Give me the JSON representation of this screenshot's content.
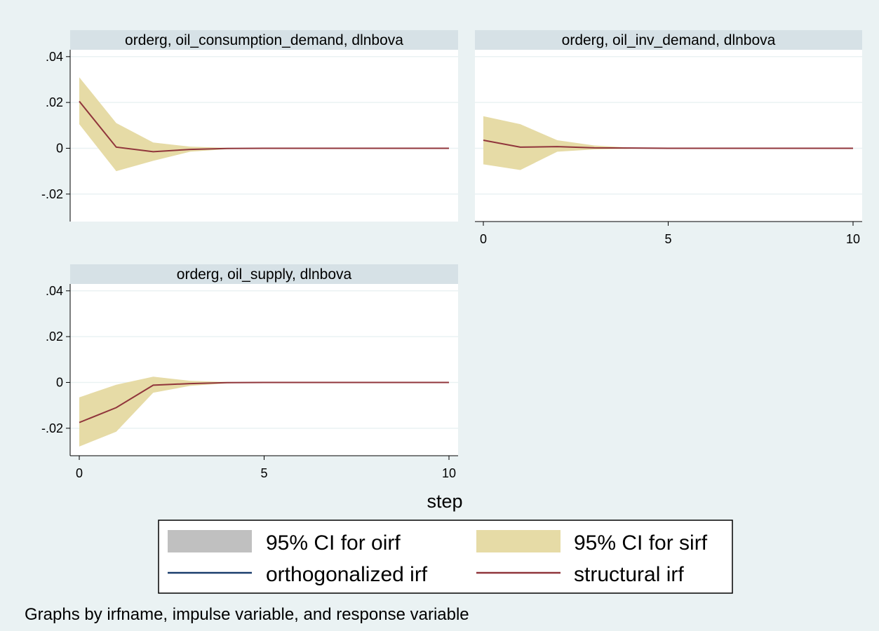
{
  "chart_data": {
    "type": "line",
    "note": "Graphs by irfname, impulse variable, and response variable",
    "xlabel": "step",
    "x": [
      0,
      1,
      2,
      3,
      4,
      5,
      6,
      7,
      8,
      9,
      10
    ],
    "xlim": [
      0,
      10
    ],
    "xticks": [
      "0",
      "5",
      "10"
    ],
    "ylim": [
      -0.032,
      0.043
    ],
    "yticks": [
      ".04",
      ".02",
      "0",
      "-.02"
    ],
    "grid": true,
    "legend": {
      "placement": "bottom",
      "items": [
        {
          "label": "95% CI for oirf",
          "kind": "area",
          "color": "#c0c0c0"
        },
        {
          "label": "95% CI for sirf",
          "kind": "area",
          "color": "#e6dba6"
        },
        {
          "label": "orthogonalized irf",
          "kind": "line",
          "color": "#1a3d6d"
        },
        {
          "label": "structural irf",
          "kind": "line",
          "color": "#90353b"
        }
      ]
    },
    "colors": {
      "ci_sirf": "#e6dba6",
      "sirf_line": "#90353b",
      "strip": "#d6e1e6",
      "grid": "#eaf2f3"
    },
    "panels": [
      {
        "title": "orderg, oil_consumption_demand, dlnbova",
        "sirf": [
          0.0205,
          0.0005,
          -0.0015,
          -0.0005,
          -0.0001,
          0,
          0,
          0,
          0,
          0,
          0
        ],
        "lower": [
          0.0105,
          -0.01,
          -0.0055,
          -0.0015,
          -0.0004,
          0,
          0,
          0,
          0,
          0,
          0
        ],
        "upper": [
          0.031,
          0.011,
          0.0025,
          0.0007,
          0.0002,
          0,
          0,
          0,
          0,
          0,
          0
        ]
      },
      {
        "title": "orderg, oil_inv_demand, dlnbova",
        "sirf": [
          0.0035,
          0.0005,
          0.0007,
          0.0002,
          0.0001,
          0,
          0,
          0,
          0,
          0,
          0
        ],
        "lower": [
          -0.007,
          -0.0095,
          -0.0015,
          -0.0005,
          -0.0002,
          0,
          0,
          0,
          0,
          0,
          0
        ],
        "upper": [
          0.014,
          0.0105,
          0.0035,
          0.0012,
          0.0003,
          0,
          0,
          0,
          0,
          0,
          0
        ]
      },
      {
        "title": "orderg, oil_supply, dlnbova",
        "sirf": [
          -0.0175,
          -0.011,
          -0.0012,
          -0.0005,
          -0.0001,
          0,
          0,
          0,
          0,
          0,
          0
        ],
        "lower": [
          -0.028,
          -0.0215,
          -0.0045,
          -0.0015,
          -0.0004,
          0,
          0,
          0,
          0,
          0,
          0
        ],
        "upper": [
          -0.0065,
          -0.001,
          0.0025,
          0.0007,
          0.0002,
          0,
          0,
          0,
          0,
          0,
          0
        ]
      }
    ]
  }
}
